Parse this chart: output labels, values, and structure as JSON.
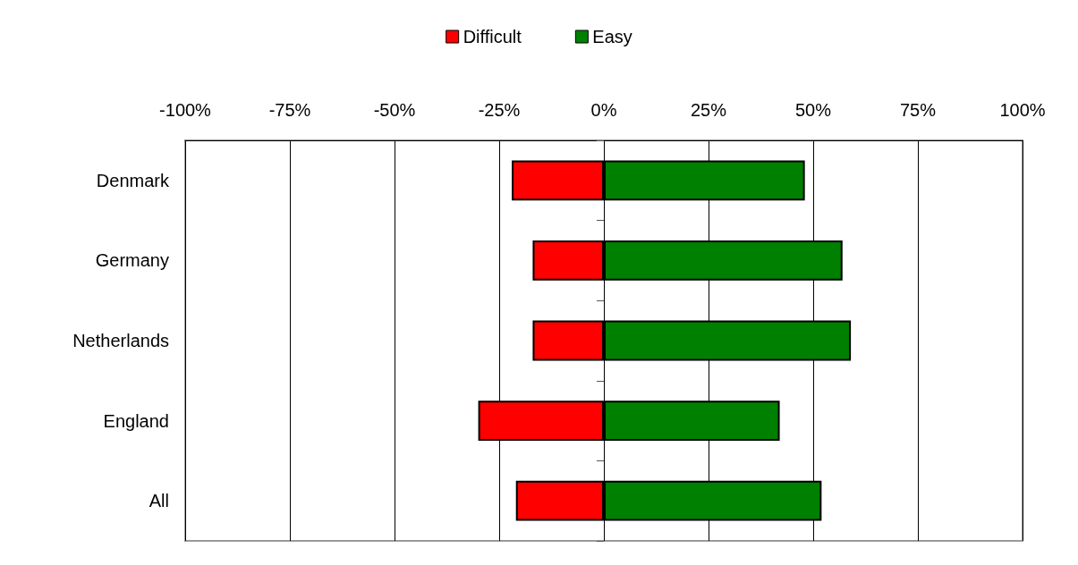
{
  "chart_data": {
    "type": "bar",
    "orientation": "horizontal",
    "stacked": true,
    "categories": [
      "Denmark",
      "Germany",
      "Netherlands",
      "England",
      "All"
    ],
    "series": [
      {
        "name": "Difficult",
        "color": "#ff0000",
        "values": [
          -22,
          -17,
          -17,
          -30,
          -21
        ]
      },
      {
        "name": "Easy",
        "color": "#008000",
        "values": [
          48,
          57,
          59,
          42,
          52
        ]
      }
    ],
    "xlim": [
      -100,
      100
    ],
    "xticks": [
      {
        "value": -100,
        "label": "-100%"
      },
      {
        "value": -75,
        "label": "-75%"
      },
      {
        "value": -50,
        "label": "-50%"
      },
      {
        "value": -25,
        "label": "-25%"
      },
      {
        "value": 0,
        "label": "0%"
      },
      {
        "value": 25,
        "label": "25%"
      },
      {
        "value": 50,
        "label": "50%"
      },
      {
        "value": 75,
        "label": "75%"
      },
      {
        "value": 100,
        "label": "100%"
      }
    ],
    "grid": "x",
    "legend": "top"
  }
}
